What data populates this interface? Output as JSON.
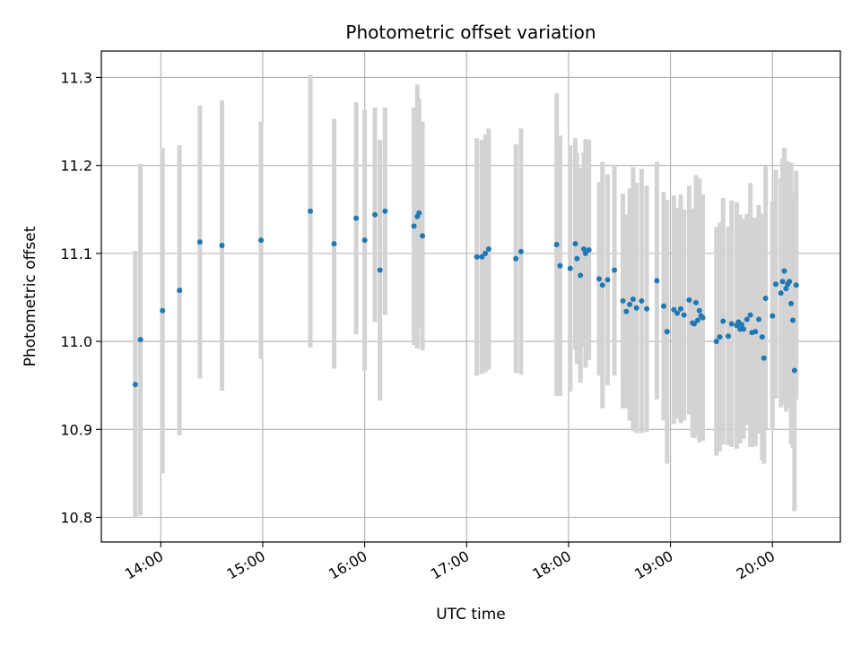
{
  "chart_data": {
    "type": "scatter",
    "title": "Photometric offset variation",
    "xlabel": "UTC time",
    "ylabel": "Photometric offset",
    "grid": true,
    "xlim": [
      "13:25",
      "20:40"
    ],
    "ylim": [
      10.772,
      11.33
    ],
    "x_ticks": [
      "14:00",
      "15:00",
      "16:00",
      "17:00",
      "18:00",
      "19:00",
      "20:00"
    ],
    "y_ticks": [
      10.8,
      10.9,
      11.0,
      11.1,
      11.2,
      11.3
    ],
    "y_tick_labels": [
      "10.8",
      "10.9",
      "11.0",
      "11.1",
      "11.2",
      "11.3"
    ],
    "colors": {
      "points": "#1f77b4",
      "error_bars": "#d3d3d3",
      "grid": "#b0b0b0"
    },
    "series": [
      {
        "x": [
          "13:45",
          "13:48",
          "14:01",
          "14:11",
          "14:23",
          "14:36",
          "14:59",
          "15:28",
          "15:42",
          "15:55",
          "16:00",
          "16:06",
          "16:09",
          "16:12",
          "16:29",
          "16:31",
          "16:32",
          "16:34",
          "17:06",
          "17:09",
          "17:11",
          "17:13",
          "17:29",
          "17:32",
          "17:53",
          "17:55",
          "18:01",
          "18:04",
          "18:05",
          "18:07",
          "18:09",
          "18:10",
          "18:12",
          "18:18",
          "18:20",
          "18:23",
          "18:27",
          "18:32",
          "18:34",
          "18:36",
          "18:38",
          "18:40",
          "18:43",
          "18:46",
          "18:52",
          "18:56",
          "18:58",
          "19:02",
          "19:04",
          "19:06",
          "19:08",
          "19:11",
          "19:13",
          "19:14",
          "19:15",
          "19:16",
          "19:17",
          "19:18",
          "19:19",
          "19:27",
          "19:29",
          "19:31",
          "19:34",
          "19:36",
          "19:39",
          "19:40",
          "19:41",
          "19:42",
          "19:43",
          "19:45",
          "19:47",
          "19:48",
          "19:50",
          "19:52",
          "19:54",
          "19:55",
          "19:56",
          "20:00",
          "20:02",
          "20:05",
          "20:06",
          "20:07",
          "20:08",
          "20:09",
          "20:10",
          "20:11",
          "20:12",
          "20:13",
          "20:14"
        ],
        "y": [
          10.951,
          11.002,
          11.035,
          11.058,
          11.113,
          11.109,
          11.115,
          11.148,
          11.111,
          11.14,
          11.115,
          11.144,
          11.081,
          11.148,
          11.131,
          11.142,
          11.146,
          11.12,
          11.096,
          11.096,
          11.1,
          11.105,
          11.094,
          11.102,
          11.11,
          11.086,
          11.083,
          11.111,
          11.094,
          11.075,
          11.105,
          11.1,
          11.104,
          11.071,
          11.064,
          11.07,
          11.081,
          11.046,
          11.034,
          11.042,
          11.048,
          11.038,
          11.046,
          11.037,
          11.069,
          11.04,
          11.011,
          11.036,
          11.032,
          11.037,
          11.03,
          11.047,
          11.021,
          11.02,
          11.044,
          11.024,
          11.035,
          11.029,
          11.027,
          11.0,
          11.005,
          11.023,
          11.006,
          11.02,
          11.018,
          11.022,
          11.014,
          11.019,
          11.014,
          11.025,
          11.03,
          11.01,
          11.011,
          11.025,
          11.005,
          10.981,
          11.049,
          11.029,
          11.065,
          11.055,
          11.068,
          11.08,
          11.06,
          11.065,
          11.068,
          11.043,
          11.024,
          10.967,
          11.064
        ],
        "yerr": [
          0.152,
          0.2,
          0.185,
          0.165,
          0.155,
          0.165,
          0.135,
          0.155,
          0.142,
          0.132,
          0.148,
          0.122,
          0.148,
          0.118,
          0.135,
          0.15,
          0.13,
          0.13,
          0.135,
          0.133,
          0.135,
          0.137,
          0.13,
          0.14,
          0.172,
          0.148,
          0.14,
          0.12,
          0.12,
          0.122,
          0.11,
          0.13,
          0.125,
          0.11,
          0.14,
          0.12,
          0.12,
          0.122,
          0.11,
          0.132,
          0.15,
          0.142,
          0.15,
          0.14,
          0.135,
          0.13,
          0.15,
          0.13,
          0.12,
          0.13,
          0.12,
          0.13,
          0.13,
          0.13,
          0.145,
          0.13,
          0.15,
          0.12,
          0.14,
          0.13,
          0.13,
          0.14,
          0.124,
          0.14,
          0.14,
          0.12,
          0.13,
          0.12,
          0.125,
          0.12,
          0.15,
          0.13,
          0.13,
          0.13,
          0.14,
          0.12,
          0.15,
          0.13,
          0.13,
          0.13,
          0.14,
          0.14,
          0.14,
          0.14,
          0.12,
          0.16,
          0.145,
          0.16,
          0.13
        ]
      }
    ]
  }
}
